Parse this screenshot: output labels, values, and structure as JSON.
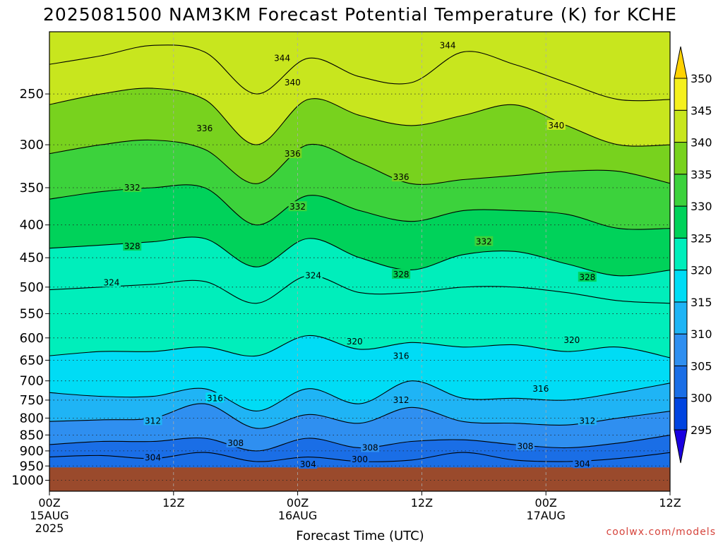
{
  "chart_data": {
    "type": "heatmap",
    "title": "2025081500 NAM3KM Forecast Potential Temperature (K) for KCHE",
    "xlabel": "Forecast Time (UTC)",
    "ylabel": "",
    "credit": "coolwx.com/models",
    "y_ticks": [
      250,
      300,
      350,
      400,
      450,
      500,
      550,
      600,
      650,
      700,
      750,
      800,
      850,
      900,
      950,
      1000
    ],
    "ylim": [
      1000,
      200
    ],
    "ground_pressure": 955,
    "x_ticks": [
      {
        "hour": 0,
        "label": "00Z",
        "sub": "15AUG",
        "year": "2025"
      },
      {
        "hour": 12,
        "label": "12Z",
        "sub": "",
        "year": ""
      },
      {
        "hour": 24,
        "label": "00Z",
        "sub": "16AUG",
        "year": ""
      },
      {
        "hour": 36,
        "label": "12Z",
        "sub": "",
        "year": ""
      },
      {
        "hour": 48,
        "label": "00Z",
        "sub": "17AUG",
        "year": ""
      },
      {
        "hour": 60,
        "label": "12Z",
        "sub": "",
        "year": ""
      }
    ],
    "xlim": [
      0,
      60
    ],
    "colorbar": {
      "levels": [
        295,
        300,
        305,
        310,
        315,
        320,
        325,
        330,
        335,
        340,
        345,
        350
      ],
      "colors": [
        "#1a00e0",
        "#0044e0",
        "#1a6ee6",
        "#2f8ff0",
        "#1fb4f5",
        "#00dcf5",
        "#00eebb",
        "#00d25a",
        "#3cd23c",
        "#78d21e",
        "#c8e61e",
        "#f5f01e",
        "#ffd200"
      ]
    },
    "isotherms": [
      {
        "theta": 304,
        "pressure": [
          920,
          915,
          925,
          905,
          935,
          920,
          935,
          930,
          905,
          930,
          935,
          925,
          905
        ]
      },
      {
        "theta": 308,
        "pressure": [
          880,
          870,
          870,
          860,
          900,
          860,
          890,
          870,
          865,
          880,
          890,
          875,
          850
        ]
      },
      {
        "theta": 312,
        "pressure": [
          810,
          805,
          800,
          760,
          830,
          790,
          815,
          770,
          810,
          815,
          820,
          800,
          780
        ]
      },
      {
        "theta": 316,
        "pressure": [
          730,
          740,
          740,
          720,
          780,
          720,
          760,
          700,
          745,
          745,
          750,
          730,
          705
        ]
      },
      {
        "theta": 320,
        "pressure": [
          640,
          630,
          630,
          620,
          640,
          595,
          625,
          610,
          620,
          615,
          630,
          620,
          645
        ]
      },
      {
        "theta": 324,
        "pressure": [
          505,
          500,
          495,
          490,
          530,
          480,
          510,
          510,
          500,
          500,
          510,
          525,
          530
        ]
      },
      {
        "theta": 328,
        "pressure": [
          435,
          430,
          425,
          420,
          465,
          420,
          450,
          470,
          445,
          440,
          460,
          480,
          470
        ]
      },
      {
        "theta": 332,
        "pressure": [
          365,
          355,
          350,
          350,
          400,
          360,
          380,
          395,
          380,
          380,
          385,
          405,
          405
        ]
      },
      {
        "theta": 336,
        "pressure": [
          310,
          300,
          295,
          305,
          345,
          300,
          320,
          345,
          340,
          335,
          330,
          330,
          345
        ]
      },
      {
        "theta": 340,
        "pressure": [
          260,
          250,
          245,
          255,
          300,
          255,
          270,
          280,
          270,
          260,
          280,
          300,
          300
        ]
      },
      {
        "theta": 344,
        "pressure": [
          225,
          218,
          210,
          215,
          250,
          220,
          235,
          240,
          215,
          225,
          240,
          255,
          255
        ]
      }
    ],
    "contour_label_positions": [
      {
        "theta": 344,
        "hour": 22.5,
        "pressure": 220
      },
      {
        "theta": 344,
        "hour": 38.5,
        "pressure": 210
      },
      {
        "theta": 340,
        "hour": 23.5,
        "pressure": 240
      },
      {
        "theta": 340,
        "hour": 49.0,
        "pressure": 280
      },
      {
        "theta": 336,
        "hour": 15.0,
        "pressure": 283
      },
      {
        "theta": 336,
        "hour": 23.5,
        "pressure": 310
      },
      {
        "theta": 336,
        "hour": 34.0,
        "pressure": 337
      },
      {
        "theta": 332,
        "hour": 8.0,
        "pressure": 350
      },
      {
        "theta": 332,
        "hour": 24.0,
        "pressure": 375
      },
      {
        "theta": 332,
        "hour": 42.0,
        "pressure": 425
      },
      {
        "theta": 328,
        "hour": 8.0,
        "pressure": 432
      },
      {
        "theta": 328,
        "hour": 34.0,
        "pressure": 478
      },
      {
        "theta": 328,
        "hour": 52.0,
        "pressure": 483
      },
      {
        "theta": 324,
        "hour": 6.0,
        "pressure": 492
      },
      {
        "theta": 324,
        "hour": 25.5,
        "pressure": 480
      },
      {
        "theta": 320,
        "hour": 29.5,
        "pressure": 608
      },
      {
        "theta": 320,
        "hour": 50.5,
        "pressure": 605
      },
      {
        "theta": 316,
        "hour": 34.0,
        "pressure": 640
      },
      {
        "theta": 316,
        "hour": 16.0,
        "pressure": 745
      },
      {
        "theta": 316,
        "hour": 47.5,
        "pressure": 720
      },
      {
        "theta": 312,
        "hour": 10.0,
        "pressure": 808
      },
      {
        "theta": 312,
        "hour": 34.0,
        "pressure": 750
      },
      {
        "theta": 312,
        "hour": 52.0,
        "pressure": 808
      },
      {
        "theta": 308,
        "hour": 18.0,
        "pressure": 875
      },
      {
        "theta": 308,
        "hour": 31.0,
        "pressure": 890
      },
      {
        "theta": 308,
        "hour": 46.0,
        "pressure": 885
      },
      {
        "theta": 304,
        "hour": 10.0,
        "pressure": 922
      },
      {
        "theta": 304,
        "hour": 25.0,
        "pressure": 945
      },
      {
        "theta": 304,
        "hour": 51.5,
        "pressure": 943
      },
      {
        "theta": 300,
        "hour": 30.0,
        "pressure": 928
      }
    ]
  }
}
